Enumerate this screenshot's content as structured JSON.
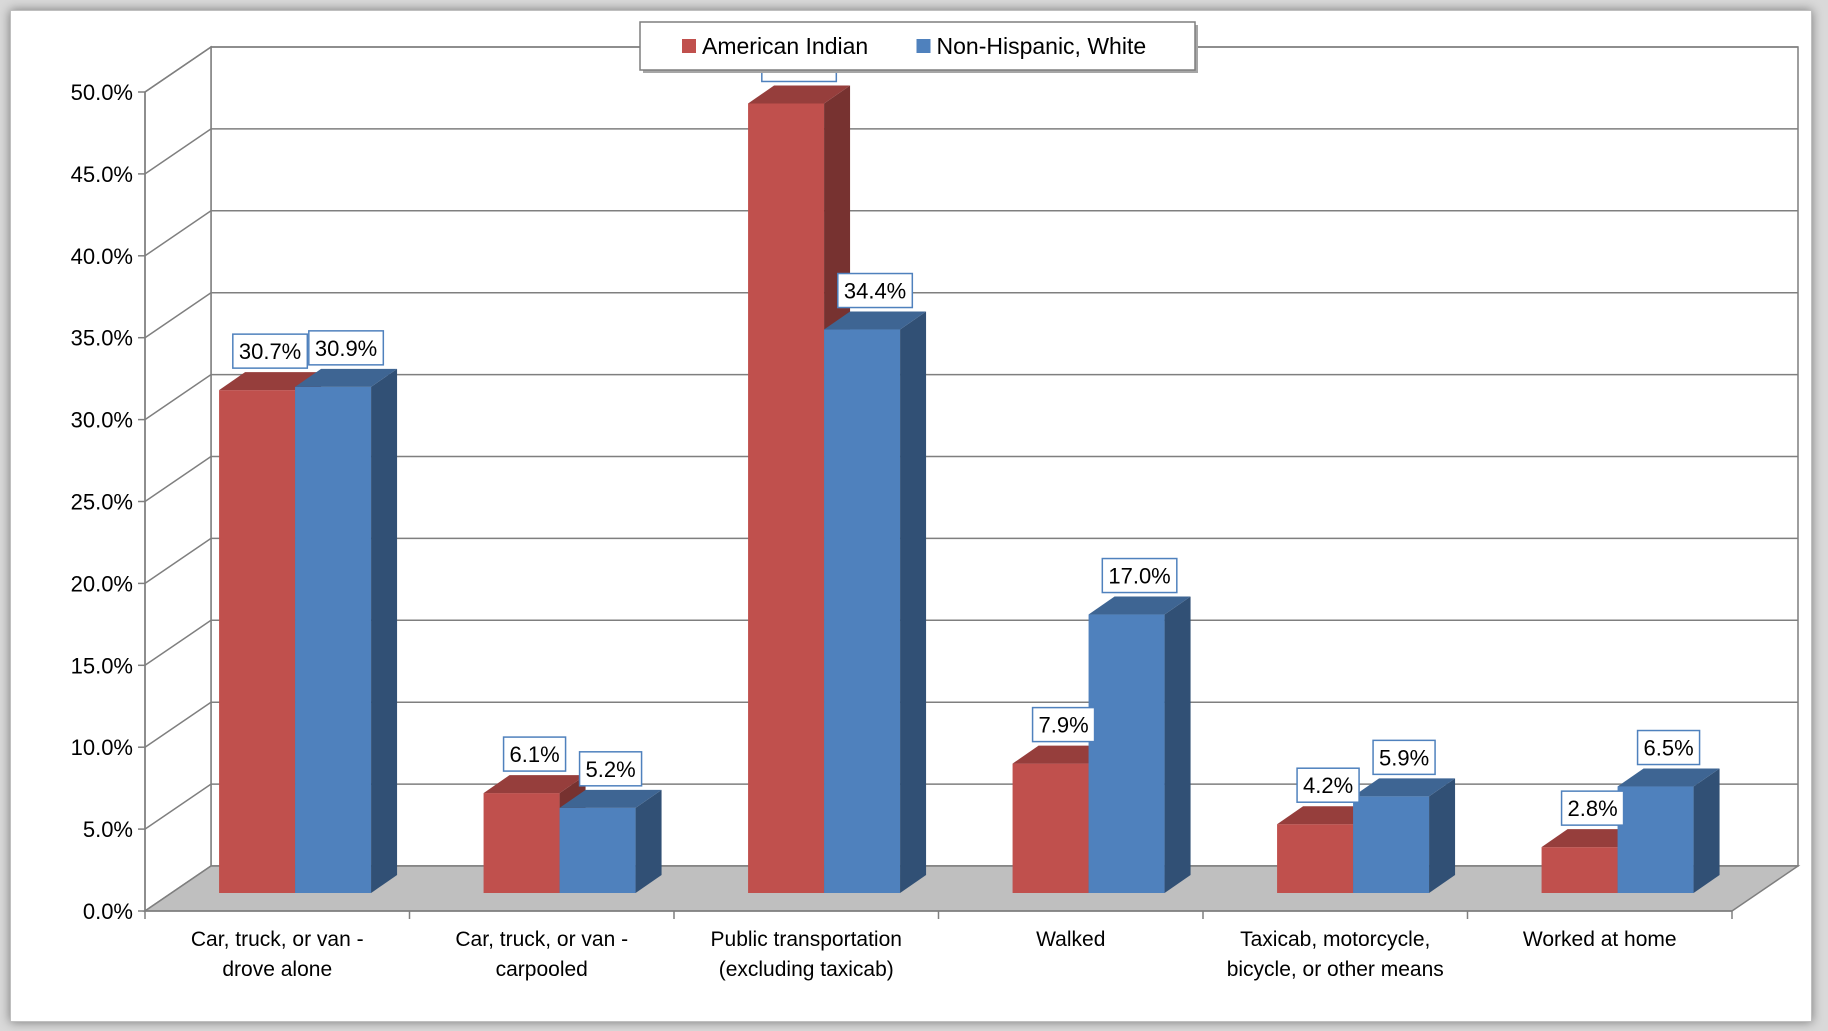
{
  "chart_data": {
    "type": "bar",
    "title": "",
    "xlabel": "",
    "ylabel": "",
    "categories": [
      [
        "Car, truck, or van -",
        "drove alone"
      ],
      [
        "Car, truck, or van -",
        "carpooled"
      ],
      [
        "Public transportation",
        "(excluding taxicab)"
      ],
      [
        "Walked"
      ],
      [
        "Taxicab, motorcycle,",
        "bicycle,  or other means"
      ],
      [
        "Worked at home"
      ]
    ],
    "series": [
      {
        "name": "American Indian",
        "color": "#c0504d",
        "values": [
          30.7,
          6.1,
          48.2,
          7.9,
          4.2,
          2.8
        ],
        "labels": [
          "30.7%",
          "6.1%",
          "48.2%",
          "7.9%",
          "4.2%",
          "2.8%"
        ]
      },
      {
        "name": "Non-Hispanic, White",
        "color": "#4f81bd",
        "values": [
          30.9,
          5.2,
          34.4,
          17.0,
          5.9,
          6.5
        ],
        "labels": [
          "30.9%",
          "5.2%",
          "34.4%",
          "17.0%",
          "5.9%",
          "6.5%"
        ]
      }
    ],
    "y_ticks": [
      "0.0%",
      "5.0%",
      "10.0%",
      "15.0%",
      "20.0%",
      "25.0%",
      "30.0%",
      "35.0%",
      "40.0%",
      "45.0%",
      "50.0%"
    ],
    "ylim": [
      0,
      50
    ],
    "grid": true,
    "legend_position": "top-center",
    "three_d": true
  }
}
